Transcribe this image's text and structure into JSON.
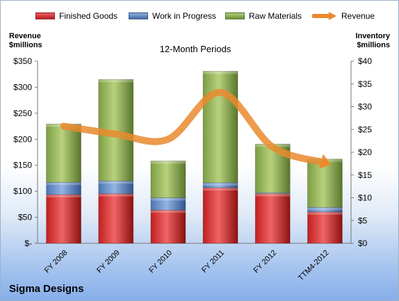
{
  "chart_data": {
    "type": "bar",
    "stacked": true,
    "title": "12-Month Periods",
    "categories": [
      "FY 2008",
      "FY 2009",
      "FY 2010",
      "FY 2011",
      "FY 2012",
      "TTM4-2012"
    ],
    "series": [
      {
        "name": "Finished Goods",
        "axis": "right",
        "values": [
          10.7,
          10.9,
          7.3,
          12.2,
          10.9,
          6.9
        ],
        "color": "#d42a2a"
      },
      {
        "name": "Work in Progress",
        "axis": "right",
        "values": [
          2.7,
          2.8,
          2.7,
          1.1,
          0.2,
          1.0
        ],
        "color": "#4e79b9"
      },
      {
        "name": "Raw Materials",
        "axis": "right",
        "values": [
          12.8,
          22.3,
          8.1,
          24.5,
          10.7,
          10.6
        ],
        "color": "#7fa145"
      },
      {
        "name": "Revenue",
        "type": "line",
        "axis": "left",
        "values": [
          225,
          210,
          200,
          290,
          185,
          155
        ],
        "color": "#ea8a2e"
      }
    ],
    "y_left": {
      "label": "Revenue\n$millions",
      "ylim": [
        0,
        350
      ],
      "ticks": [
        "$-",
        "$50",
        "$100",
        "$150",
        "$200",
        "$250",
        "$300",
        "$350"
      ]
    },
    "y_right": {
      "label": "Inventory\n$millions",
      "ylim": [
        0,
        40
      ],
      "ticks": [
        "$0",
        "$5",
        "$10",
        "$15",
        "$20",
        "$25",
        "$30",
        "$35",
        "$40"
      ]
    },
    "grid": false,
    "legend": "top"
  },
  "legend": {
    "finished_goods": "Finished Goods",
    "work_in_progress": "Work in Progress",
    "raw_materials": "Raw Materials",
    "revenue": "Revenue"
  },
  "footer": {
    "company": "Sigma Designs"
  }
}
